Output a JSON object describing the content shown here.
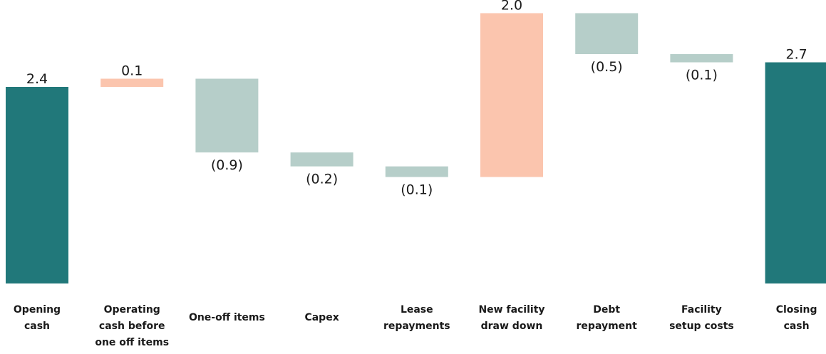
{
  "chart_data": {
    "type": "bar",
    "subtype": "waterfall",
    "title": "",
    "xlabel": "",
    "ylabel": "",
    "ylim": [
      0,
      3.08
    ],
    "grid": false,
    "legend": "none",
    "categories": [
      [
        "Opening",
        "cash"
      ],
      [
        "Operating",
        "cash before",
        "one off items"
      ],
      [
        "One-off items"
      ],
      [
        "Capex"
      ],
      [
        "Lease",
        "repayments"
      ],
      [
        "New facility",
        "draw down"
      ],
      [
        "Debt",
        "repayment"
      ],
      [
        "Facility",
        "setup costs"
      ],
      [
        "Closing",
        "cash"
      ]
    ],
    "bars": [
      {
        "kind": "total",
        "start": 0,
        "end": 2.4,
        "label": "2.4"
      },
      {
        "kind": "increase",
        "start": 2.4,
        "end": 2.5,
        "label": "0.1"
      },
      {
        "kind": "decrease",
        "start": 2.5,
        "end": 1.6,
        "label": "(0.9)"
      },
      {
        "kind": "decrease",
        "start": 1.6,
        "end": 1.43,
        "label": "(0.2)"
      },
      {
        "kind": "decrease",
        "start": 1.43,
        "end": 1.3,
        "label": "(0.1)"
      },
      {
        "kind": "increase",
        "start": 1.3,
        "end": 3.3,
        "label": "2.0"
      },
      {
        "kind": "decrease",
        "start": 3.3,
        "end": 2.8,
        "label": "(0.5)"
      },
      {
        "kind": "decrease",
        "start": 2.8,
        "end": 2.7,
        "label": "(0.1)"
      },
      {
        "kind": "total",
        "start": 0,
        "end": 2.7,
        "label": "2.7"
      }
    ],
    "colors": {
      "total": "#21787a",
      "increase": "#fbc5ae",
      "decrease": "#b6cec9"
    }
  }
}
